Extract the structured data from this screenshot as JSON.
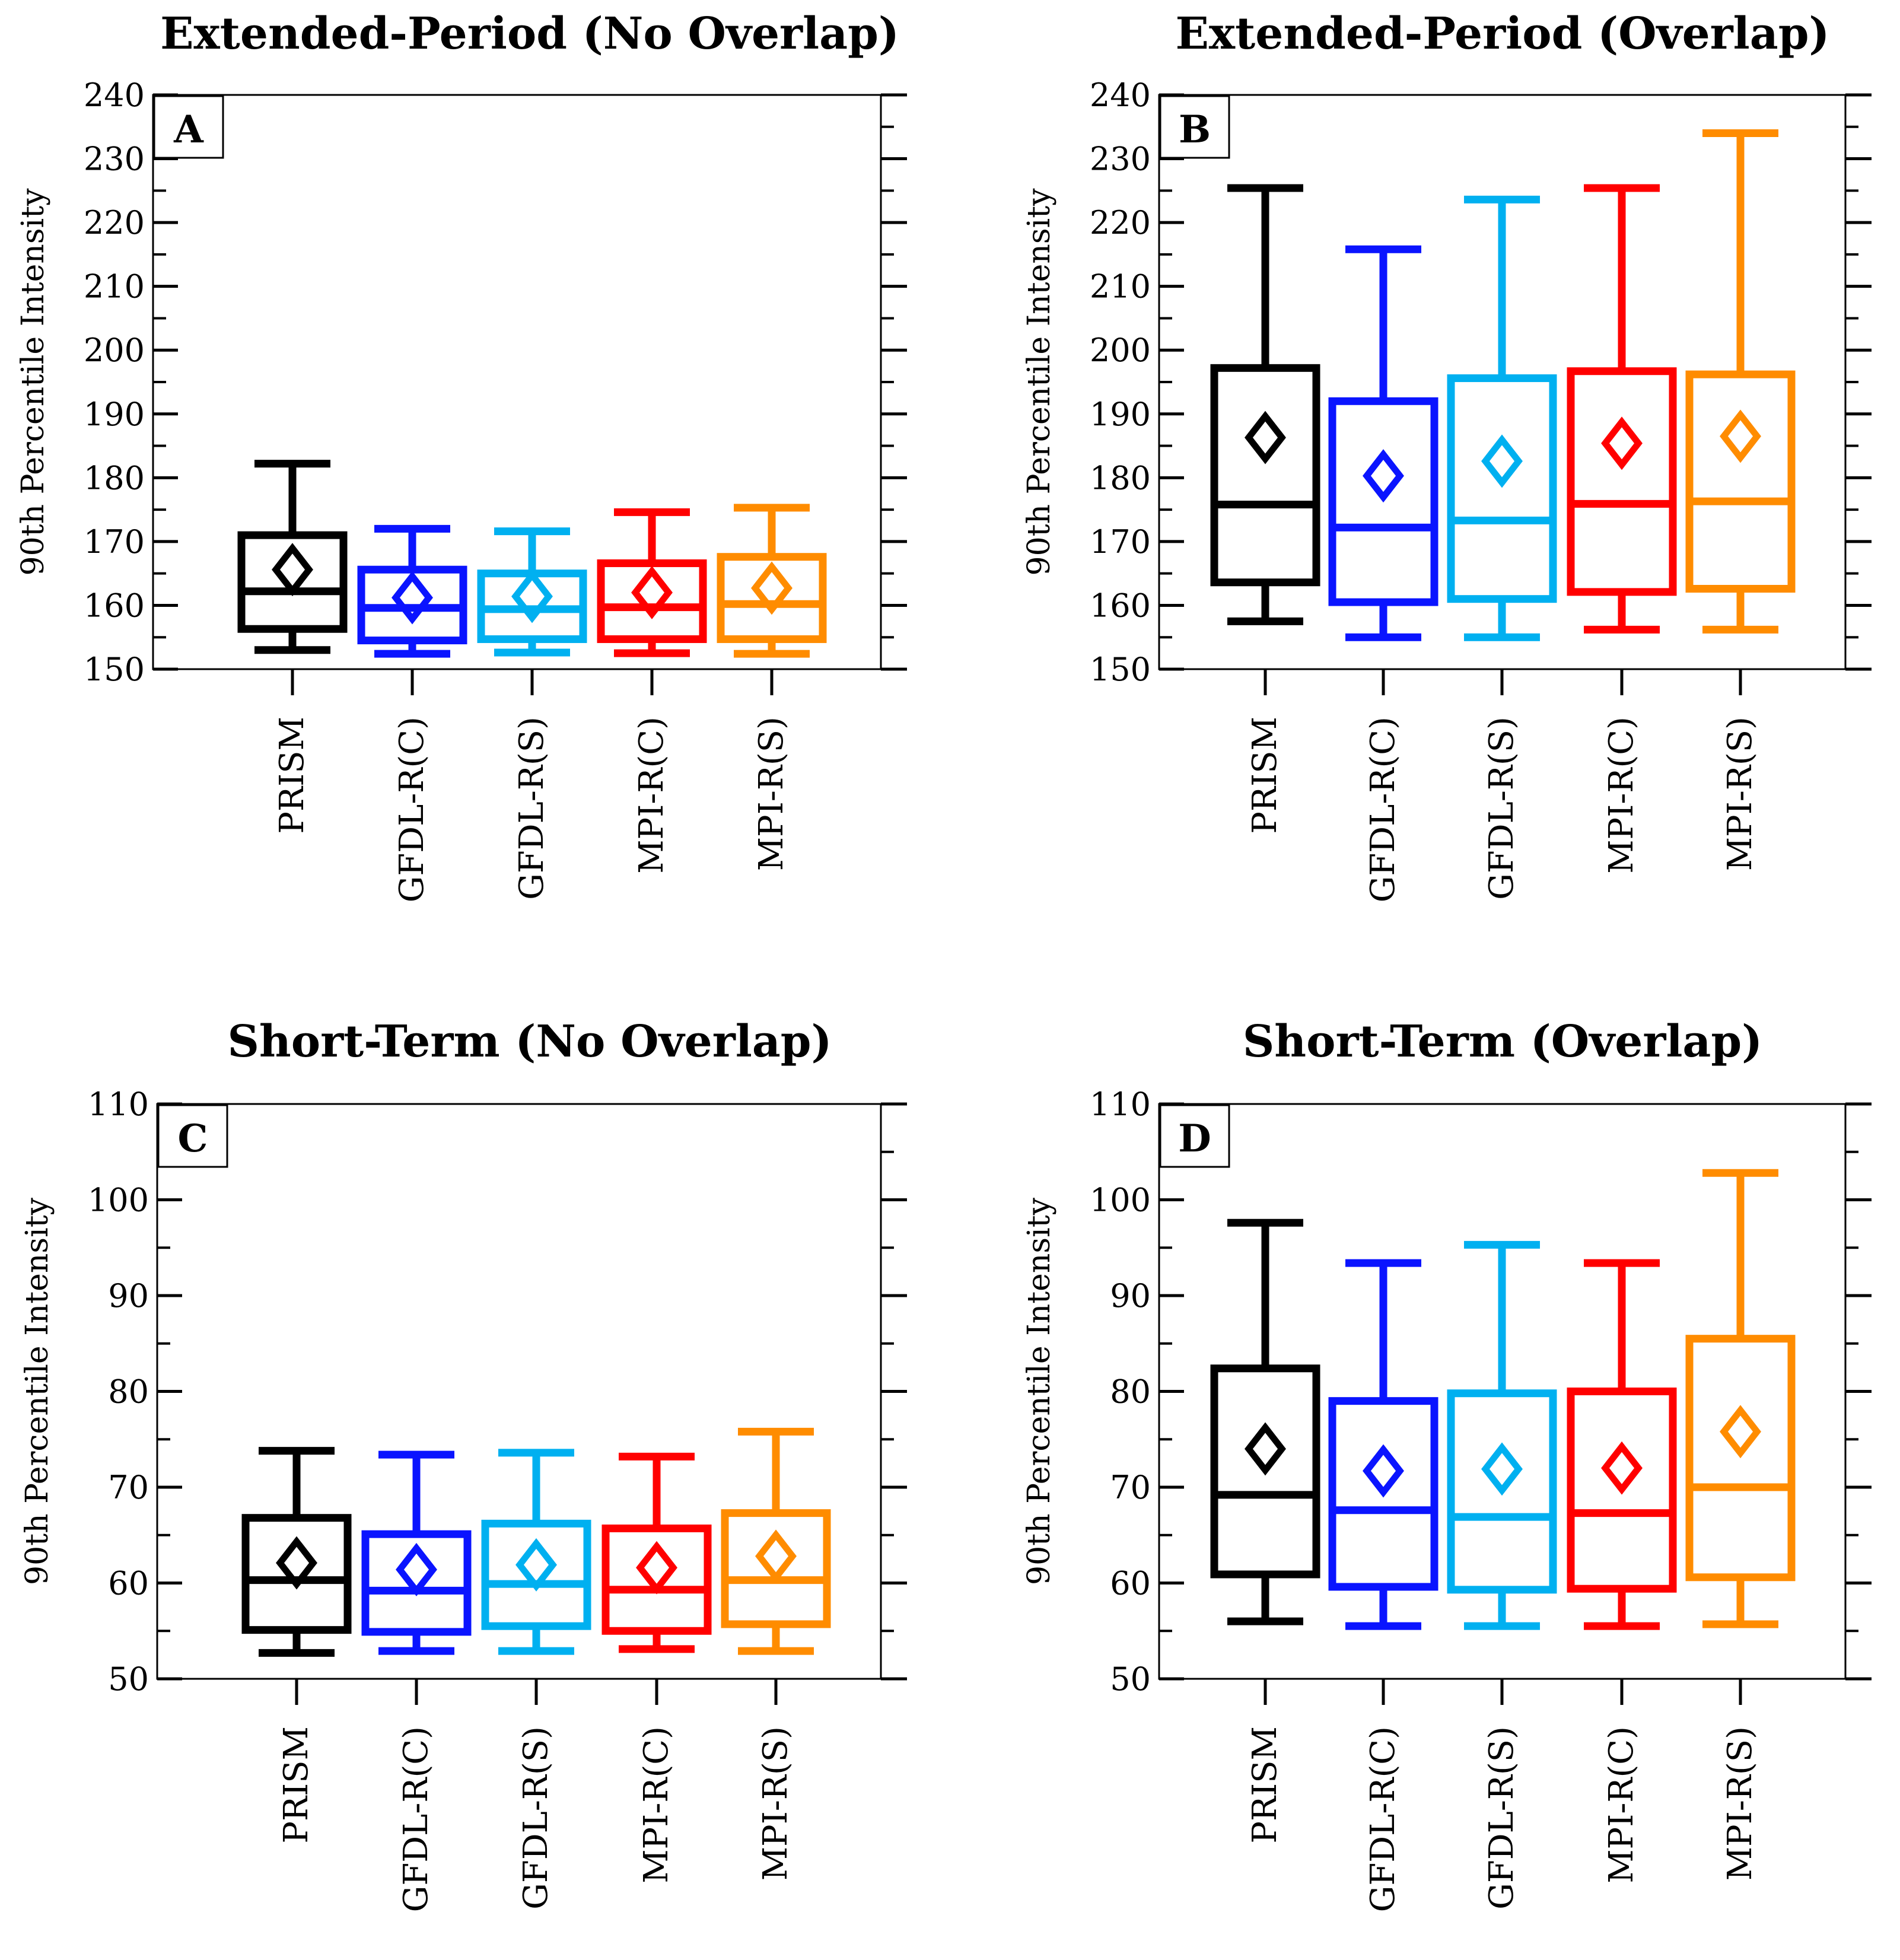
{
  "colors": {
    "PRISM": "#000000",
    "GFDL-R(C)": "#0a14ff",
    "GFDL-R(S)": "#00b0f0",
    "MPI-R(C)": "#ff0000",
    "MPI-R(S)": "#ff8c00"
  },
  "chart_data": [
    {
      "type": "box",
      "panel_label": "A",
      "title": "Extended-Period (No Overlap)",
      "ylabel": "90th Percentile Intensity",
      "ylim": [
        150,
        240
      ],
      "yticks": [
        150,
        160,
        170,
        180,
        190,
        200,
        210,
        220,
        230,
        240
      ],
      "categories": [
        "PRISM",
        "GFDL-R(C)",
        "GFDL-R(S)",
        "MPI-R(C)",
        "MPI-R(S)"
      ],
      "boxes": [
        {
          "name": "PRISM",
          "whisker_low": 153,
          "q1": 156.3,
          "median": 162.2,
          "q3": 171.0,
          "whisker_high": 182.2,
          "mean": 165.6
        },
        {
          "name": "GFDL-R(C)",
          "whisker_low": 152.4,
          "q1": 154.5,
          "median": 159.6,
          "q3": 165.6,
          "whisker_high": 172.0,
          "mean": 161.2
        },
        {
          "name": "GFDL-R(S)",
          "whisker_low": 152.6,
          "q1": 154.7,
          "median": 159.4,
          "q3": 165.0,
          "whisker_high": 171.6,
          "mean": 161.4
        },
        {
          "name": "MPI-R(C)",
          "whisker_low": 152.5,
          "q1": 154.7,
          "median": 159.7,
          "q3": 166.6,
          "whisker_high": 174.6,
          "mean": 162.0
        },
        {
          "name": "MPI-R(S)",
          "whisker_low": 152.4,
          "q1": 154.7,
          "median": 160.2,
          "q3": 167.6,
          "whisker_high": 175.3,
          "mean": 162.7
        }
      ]
    },
    {
      "type": "box",
      "panel_label": "B",
      "title": "Extended-Period (Overlap)",
      "ylabel": "90th Percentile Intensity",
      "ylim": [
        150,
        240
      ],
      "yticks": [
        150,
        160,
        170,
        180,
        190,
        200,
        210,
        220,
        230,
        240
      ],
      "categories": [
        "PRISM",
        "GFDL-R(C)",
        "GFDL-R(S)",
        "MPI-R(C)",
        "MPI-R(S)"
      ],
      "boxes": [
        {
          "name": "PRISM",
          "whisker_low": 157.5,
          "q1": 163.6,
          "median": 175.8,
          "q3": 197.2,
          "whisker_high": 225.4,
          "mean": 186.3
        },
        {
          "name": "GFDL-R(C)",
          "whisker_low": 155.0,
          "q1": 160.5,
          "median": 172.2,
          "q3": 192.0,
          "whisker_high": 215.8,
          "mean": 180.3
        },
        {
          "name": "GFDL-R(S)",
          "whisker_low": 155.0,
          "q1": 161.0,
          "median": 173.3,
          "q3": 195.6,
          "whisker_high": 223.6,
          "mean": 182.6
        },
        {
          "name": "MPI-R(C)",
          "whisker_low": 156.2,
          "q1": 162.1,
          "median": 175.9,
          "q3": 196.7,
          "whisker_high": 225.4,
          "mean": 185.4
        },
        {
          "name": "MPI-R(S)",
          "whisker_low": 156.2,
          "q1": 162.6,
          "median": 176.3,
          "q3": 196.2,
          "whisker_high": 234.0,
          "mean": 186.5
        }
      ]
    },
    {
      "type": "box",
      "panel_label": "C",
      "title": "Short-Term (No Overlap)",
      "ylabel": "90th Percentile Intensity",
      "ylim": [
        50,
        110
      ],
      "yticks": [
        50,
        60,
        70,
        80,
        90,
        100,
        110
      ],
      "categories": [
        "PRISM",
        "GFDL-R(C)",
        "GFDL-R(S)",
        "MPI-R(C)",
        "MPI-R(S)"
      ],
      "boxes": [
        {
          "name": "PRISM",
          "whisker_low": 52.7,
          "q1": 55.1,
          "median": 60.3,
          "q3": 66.8,
          "whisker_high": 73.8,
          "mean": 62.1
        },
        {
          "name": "GFDL-R(C)",
          "whisker_low": 52.9,
          "q1": 54.9,
          "median": 59.2,
          "q3": 65.1,
          "whisker_high": 73.4,
          "mean": 61.4
        },
        {
          "name": "GFDL-R(S)",
          "whisker_low": 52.9,
          "q1": 55.5,
          "median": 59.9,
          "q3": 66.2,
          "whisker_high": 73.6,
          "mean": 61.9
        },
        {
          "name": "MPI-R(C)",
          "whisker_low": 53.1,
          "q1": 55.0,
          "median": 59.3,
          "q3": 65.7,
          "whisker_high": 73.2,
          "mean": 61.6
        },
        {
          "name": "MPI-R(S)",
          "whisker_low": 52.9,
          "q1": 55.7,
          "median": 60.3,
          "q3": 67.3,
          "whisker_high": 75.8,
          "mean": 62.8
        }
      ]
    },
    {
      "type": "box",
      "panel_label": "D",
      "title": "Short-Term (Overlap)",
      "ylabel": "90th Percentile Intensity",
      "ylim": [
        50,
        110
      ],
      "yticks": [
        50,
        60,
        70,
        80,
        90,
        100,
        110
      ],
      "categories": [
        "PRISM",
        "GFDL-R(C)",
        "GFDL-R(S)",
        "MPI-R(C)",
        "MPI-R(S)"
      ],
      "boxes": [
        {
          "name": "PRISM",
          "whisker_low": 56.0,
          "q1": 60.9,
          "median": 69.2,
          "q3": 82.4,
          "whisker_high": 97.6,
          "mean": 74.0
        },
        {
          "name": "GFDL-R(C)",
          "whisker_low": 55.5,
          "q1": 59.6,
          "median": 67.6,
          "q3": 79.0,
          "whisker_high": 93.4,
          "mean": 71.7
        },
        {
          "name": "GFDL-R(S)",
          "whisker_low": 55.5,
          "q1": 59.3,
          "median": 66.9,
          "q3": 79.8,
          "whisker_high": 95.3,
          "mean": 71.9
        },
        {
          "name": "MPI-R(C)",
          "whisker_low": 55.5,
          "q1": 59.4,
          "median": 67.3,
          "q3": 80.0,
          "whisker_high": 93.4,
          "mean": 72.0
        },
        {
          "name": "MPI-R(S)",
          "whisker_low": 55.7,
          "q1": 60.6,
          "median": 70.0,
          "q3": 85.5,
          "whisker_high": 102.8,
          "mean": 75.8
        }
      ]
    }
  ]
}
